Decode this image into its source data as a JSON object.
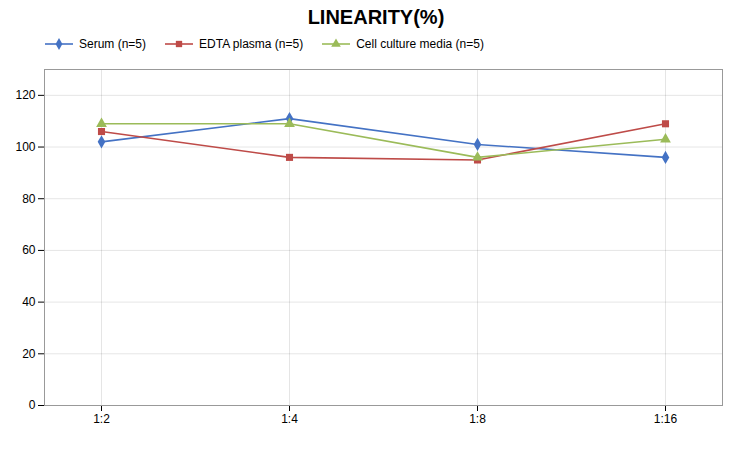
{
  "chart_data": {
    "type": "line",
    "title": "LINEARITY(%)",
    "categories": [
      "1:2",
      "1:4",
      "1:8",
      "1:16"
    ],
    "series": [
      {
        "name": "Serum (n=5)",
        "color": "#4472C4",
        "marker": "diamond",
        "values": [
          102,
          111,
          101,
          96
        ]
      },
      {
        "name": "EDTA plasma (n=5)",
        "color": "#BE4B48",
        "marker": "square",
        "values": [
          106,
          96,
          95,
          109
        ]
      },
      {
        "name": "Cell culture media (n=5)",
        "color": "#9BBB59",
        "marker": "triangle",
        "values": [
          109,
          109,
          96,
          103
        ]
      }
    ],
    "ylim": [
      0,
      130
    ],
    "yticks": [
      0,
      20,
      40,
      60,
      80,
      100,
      120
    ],
    "grid": true,
    "legend": "top-left"
  }
}
